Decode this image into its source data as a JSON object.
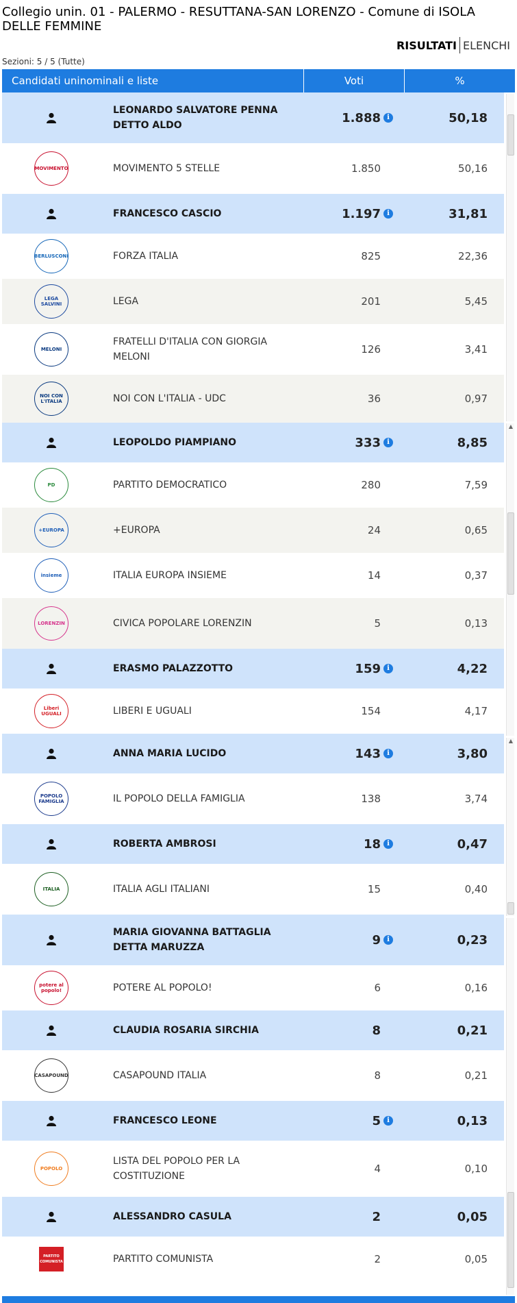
{
  "header": {
    "title": "Collegio unin. 01 - PALERMO - RESUTTANA-SAN LORENZO - Comune di ISOLA DELLE FEMMINE",
    "tabs": [
      {
        "label": "RISULTATI",
        "active": true
      },
      {
        "label": "ELENCHI",
        "active": false
      }
    ],
    "sections": "Sezioni: 5 / 5 (Tutte)"
  },
  "table": {
    "columns": [
      "Candidati uninominali e liste",
      "Voti",
      "%"
    ],
    "colors": {
      "header": "#1e7ce0",
      "candidate_row": "#cfe3fb",
      "alt_row": "#f3f3ef",
      "info_icon": "#1e7ce0"
    },
    "rows": [
      {
        "type": "candidate",
        "name": "LEONARDO SALVATORE PENNA DETTO ALDO",
        "votes": "1.888",
        "pct": "50,18",
        "info": true,
        "icon": "person-icon"
      },
      {
        "type": "party",
        "name": "MOVIMENTO 5 STELLE",
        "votes": "1.850",
        "pct": "50,16",
        "logo": "MOVIMENTO",
        "logo_color": "#c8102e"
      },
      {
        "type": "candidate",
        "name": "FRANCESCO CASCIO",
        "votes": "1.197",
        "pct": "31,81",
        "info": true,
        "icon": "person-icon"
      },
      {
        "type": "party",
        "name": "FORZA ITALIA",
        "votes": "825",
        "pct": "22,36",
        "logo": "BERLUSCONI",
        "logo_color": "#1466b8"
      },
      {
        "type": "party",
        "name": "LEGA",
        "votes": "201",
        "pct": "5,45",
        "logo": "LEGA SALVINI",
        "logo_color": "#1d4aa0"
      },
      {
        "type": "party",
        "name": "FRATELLI D'ITALIA CON GIORGIA MELONI",
        "votes": "126",
        "pct": "3,41",
        "logo": "MELONI",
        "logo_color": "#0a3a80"
      },
      {
        "type": "party",
        "name": "NOI CON L'ITALIA - UDC",
        "votes": "36",
        "pct": "0,97",
        "logo": "NOI CON L'ITALIA",
        "logo_color": "#0a3a80"
      },
      {
        "type": "candidate",
        "name": "LEOPOLDO PIAMPIANO",
        "votes": "333",
        "pct": "8,85",
        "info": true,
        "icon": "person-icon"
      },
      {
        "type": "party",
        "name": "PARTITO DEMOCRATICO",
        "votes": "280",
        "pct": "7,59",
        "logo": "PD",
        "logo_color": "#2a8a3c"
      },
      {
        "type": "party",
        "name": "+EUROPA",
        "votes": "24",
        "pct": "0,65",
        "logo": "+EUROPA",
        "logo_color": "#1f5fb8"
      },
      {
        "type": "party",
        "name": "ITALIA EUROPA INSIEME",
        "votes": "14",
        "pct": "0,37",
        "logo": "insieme",
        "logo_color": "#1f5fb8"
      },
      {
        "type": "party",
        "name": "CIVICA POPOLARE LORENZIN",
        "votes": "5",
        "pct": "0,13",
        "logo": "LORENZIN",
        "logo_color": "#d6338c"
      },
      {
        "type": "candidate",
        "name": "ERASMO PALAZZOTTO",
        "votes": "159",
        "pct": "4,22",
        "info": true,
        "icon": "person-icon"
      },
      {
        "type": "party",
        "name": "LIBERI E UGUALI",
        "votes": "154",
        "pct": "4,17",
        "logo": "Liberi UGUALI",
        "logo_color": "#d41f26"
      },
      {
        "type": "candidate",
        "name": "ANNA MARIA LUCIDO",
        "votes": "143",
        "pct": "3,80",
        "info": true,
        "icon": "person-icon"
      },
      {
        "type": "party",
        "name": "IL POPOLO DELLA FAMIGLIA",
        "votes": "138",
        "pct": "3,74",
        "logo": "POPOLO FAMIGLIA",
        "logo_color": "#1a3a8c"
      },
      {
        "type": "candidate",
        "name": "ROBERTA AMBROSI",
        "votes": "18",
        "pct": "0,47",
        "info": true,
        "icon": "person-icon"
      },
      {
        "type": "party",
        "name": "ITALIA AGLI ITALIANI",
        "votes": "15",
        "pct": "0,40",
        "logo": "ITALIA",
        "logo_color": "#1b5e20"
      },
      {
        "type": "candidate",
        "name": "MARIA GIOVANNA BATTAGLIA DETTA MARUZZA",
        "votes": "9",
        "pct": "0,23",
        "info": true,
        "icon": "person-icon"
      },
      {
        "type": "party",
        "name": "POTERE AL POPOLO!",
        "votes": "6",
        "pct": "0,16",
        "logo": "potere al popolo!",
        "logo_color": "#c8102e"
      },
      {
        "type": "candidate",
        "name": "CLAUDIA ROSARIA SIRCHIA",
        "votes": "8",
        "pct": "0,21",
        "info": false,
        "icon": "person-icon"
      },
      {
        "type": "party",
        "name": "CASAPOUND ITALIA",
        "votes": "8",
        "pct": "0,21",
        "logo": "CASAPOUND",
        "logo_color": "#333333"
      },
      {
        "type": "candidate",
        "name": "FRANCESCO LEONE",
        "votes": "5",
        "pct": "0,13",
        "info": true,
        "icon": "person-icon"
      },
      {
        "type": "party",
        "name": "LISTA DEL POPOLO PER LA COSTITUZIONE",
        "votes": "4",
        "pct": "0,10",
        "logo": "POPOLO",
        "logo_color": "#f07c1e"
      },
      {
        "type": "candidate",
        "name": "ALESSANDRO CASULA",
        "votes": "2",
        "pct": "0,05",
        "info": false,
        "icon": "person-icon"
      },
      {
        "type": "party",
        "name": "PARTITO COMUNISTA",
        "votes": "2",
        "pct": "0,05",
        "logo": "PARTITO COMUNISTA",
        "logo_color": "#d41f26",
        "logo_shape": "square"
      }
    ]
  }
}
